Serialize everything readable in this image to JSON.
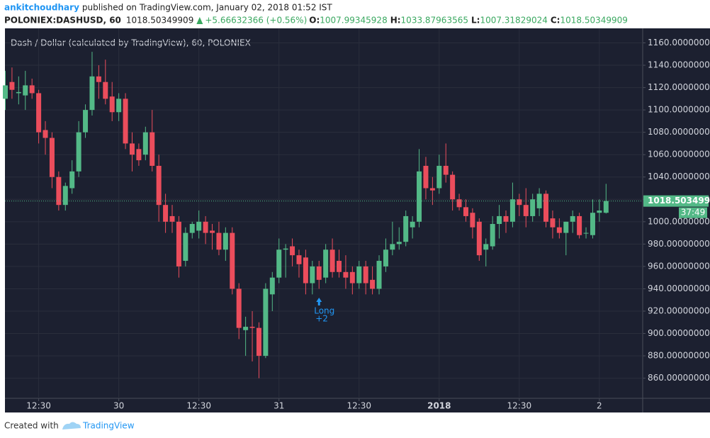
{
  "header": {
    "author": "ankitchoudhary",
    "published": "published on TradingView.com, January 02, 2018 01:52 IST",
    "symbol": "POLONIEX:DASHUSD, 60",
    "change": "+5.66632366 (+0.56%)",
    "o_label": "O:",
    "h_label": "H:",
    "l_label": "L:",
    "c_label": "C:"
  },
  "chart_data": {
    "type": "candlestick",
    "title": "Dash / Dollar (calculated by TradingView), 60, POLONIEX",
    "categories": [
      null,
      null,
      null,
      null,
      null,
      "12:30",
      null,
      null,
      null,
      null,
      null,
      null,
      null,
      null,
      null,
      null,
      null,
      "30",
      null,
      null,
      null,
      null,
      null,
      null,
      null,
      null,
      null,
      null,
      null,
      "12:30",
      null,
      null,
      null,
      null,
      null,
      null,
      null,
      null,
      null,
      null,
      null,
      "31",
      null,
      null,
      null,
      null,
      null,
      null,
      null,
      null,
      null,
      null,
      null,
      "12:30",
      null,
      null,
      null,
      null,
      null,
      null,
      null,
      null,
      null,
      null,
      null,
      "2018",
      null,
      null,
      null,
      null,
      null,
      null,
      null,
      null,
      null,
      null,
      null,
      "12:30",
      null,
      null,
      null,
      null,
      null,
      null,
      null,
      null,
      null,
      null,
      null,
      "2",
      null
    ],
    "open": [
      1110,
      1125,
      1115,
      1113,
      1122,
      1115,
      1082,
      1075,
      1040,
      1015,
      1030,
      1045,
      1080,
      1100,
      1130,
      1125,
      1112,
      1098,
      1110,
      1070,
      1065,
      1060,
      1080,
      1050,
      1015,
      1005,
      1000,
      965,
      990,
      992,
      1000,
      992,
      990,
      975,
      990,
      940,
      903,
      906,
      905,
      880,
      935,
      950,
      975,
      978,
      970,
      968,
      945,
      960,
      950,
      975,
      965,
      955,
      955,
      945,
      960,
      948,
      940,
      960,
      975,
      980,
      982,
      995,
      1000,
      1050,
      1030,
      1030,
      1050,
      1042,
      1020,
      1013,
      1008,
      1000,
      975,
      978,
      998,
      1005,
      1000,
      1020,
      1015,
      1005,
      1012,
      1025,
      1003,
      995,
      990,
      1000,
      1005,
      990,
      988,
      1008,
      1007.99345928
    ],
    "high": [
      1135,
      1138,
      1130,
      1135,
      1128,
      1118,
      1090,
      1080,
      1045,
      1035,
      1055,
      1090,
      1105,
      1152,
      1140,
      1145,
      1125,
      1115,
      1115,
      1080,
      1070,
      1085,
      1100,
      1060,
      1025,
      1015,
      1005,
      995,
      1000,
      1010,
      1005,
      998,
      1000,
      995,
      995,
      945,
      915,
      920,
      910,
      945,
      955,
      985,
      980,
      985,
      975,
      975,
      965,
      965,
      980,
      985,
      975,
      970,
      960,
      965,
      965,
      960,
      970,
      985,
      1000,
      995,
      1010,
      1005,
      1065,
      1058,
      1040,
      1060,
      1070,
      1045,
      1025,
      1020,
      1012,
      1003,
      985,
      1005,
      1015,
      1010,
      1035,
      1025,
      1030,
      1025,
      1030,
      1028,
      1010,
      1003,
      1000,
      1010,
      1008,
      995,
      1020,
      1020,
      1033.87963565
    ],
    "low": [
      1100,
      1110,
      1105,
      1100,
      1110,
      1070,
      1060,
      1030,
      1010,
      1010,
      1025,
      1040,
      1075,
      1095,
      1110,
      1105,
      1090,
      1090,
      1065,
      1045,
      1050,
      1055,
      1045,
      1000,
      990,
      990,
      950,
      960,
      985,
      985,
      980,
      975,
      970,
      965,
      935,
      895,
      880,
      875,
      860,
      878,
      920,
      945,
      950,
      960,
      950,
      935,
      935,
      940,
      945,
      950,
      950,
      940,
      935,
      940,
      935,
      935,
      935,
      955,
      970,
      975,
      978,
      985,
      995,
      1020,
      1015,
      1025,
      1035,
      1010,
      1010,
      1000,
      985,
      965,
      960,
      975,
      985,
      990,
      995,
      1005,
      995,
      1000,
      1005,
      995,
      985,
      985,
      970,
      990,
      985,
      985,
      985,
      1000,
      1007.31829024
    ],
    "close": [
      1122,
      1118,
      1116,
      1122,
      1115,
      1080,
      1075,
      1040,
      1015,
      1032,
      1045,
      1080,
      1100,
      1130,
      1125,
      1110,
      1098,
      1110,
      1070,
      1060,
      1055,
      1080,
      1050,
      1015,
      1000,
      1000,
      960,
      990,
      998,
      1000,
      990,
      990,
      975,
      990,
      940,
      905,
      906,
      905,
      880,
      940,
      950,
      975,
      976,
      970,
      962,
      945,
      960,
      948,
      975,
      955,
      955,
      950,
      945,
      960,
      945,
      940,
      965,
      975,
      980,
      982,
      1005,
      1000,
      1045,
      1030,
      1028,
      1050,
      1042,
      1020,
      1013,
      1005,
      995,
      970,
      980,
      998,
      1005,
      1000,
      1020,
      1015,
      1005,
      1020,
      1025,
      1000,
      995,
      990,
      1000,
      1005,
      988,
      990,
      1008,
      1010,
      1018.50349909
    ],
    "up_color": "#53b987",
    "down_color": "#eb4d5c",
    "ylim": [
      842,
      1173
    ],
    "yticks": [
      {
        "value": 860,
        "label": "860.00000000"
      },
      {
        "value": 880,
        "label": "880.00000000"
      },
      {
        "value": 900,
        "label": "900.00000000"
      },
      {
        "value": 920,
        "label": "920.00000000"
      },
      {
        "value": 940,
        "label": "940.00000000"
      },
      {
        "value": 960,
        "label": "960.00000000"
      },
      {
        "value": 980,
        "label": "980.00000000"
      },
      {
        "value": 1000,
        "label": "1000.00000000"
      },
      {
        "value": 1020,
        "label": "1020.00000000"
      },
      {
        "value": 1040,
        "label": "1040.00000000"
      },
      {
        "value": 1060,
        "label": "1060.00000000"
      },
      {
        "value": 1080,
        "label": "1080.00000000"
      },
      {
        "value": 1100,
        "label": "1100.00000000"
      },
      {
        "value": 1120,
        "label": "1120.00000000"
      },
      {
        "value": 1140,
        "label": "1140.00000000"
      },
      {
        "value": 1160,
        "label": "1160.00000000"
      }
    ],
    "grid": true,
    "countdown": "37:49",
    "signal": {
      "label": "Long",
      "size": "+2"
    }
  },
  "footer": {
    "created": "Created with",
    "brand": "TradingView"
  }
}
